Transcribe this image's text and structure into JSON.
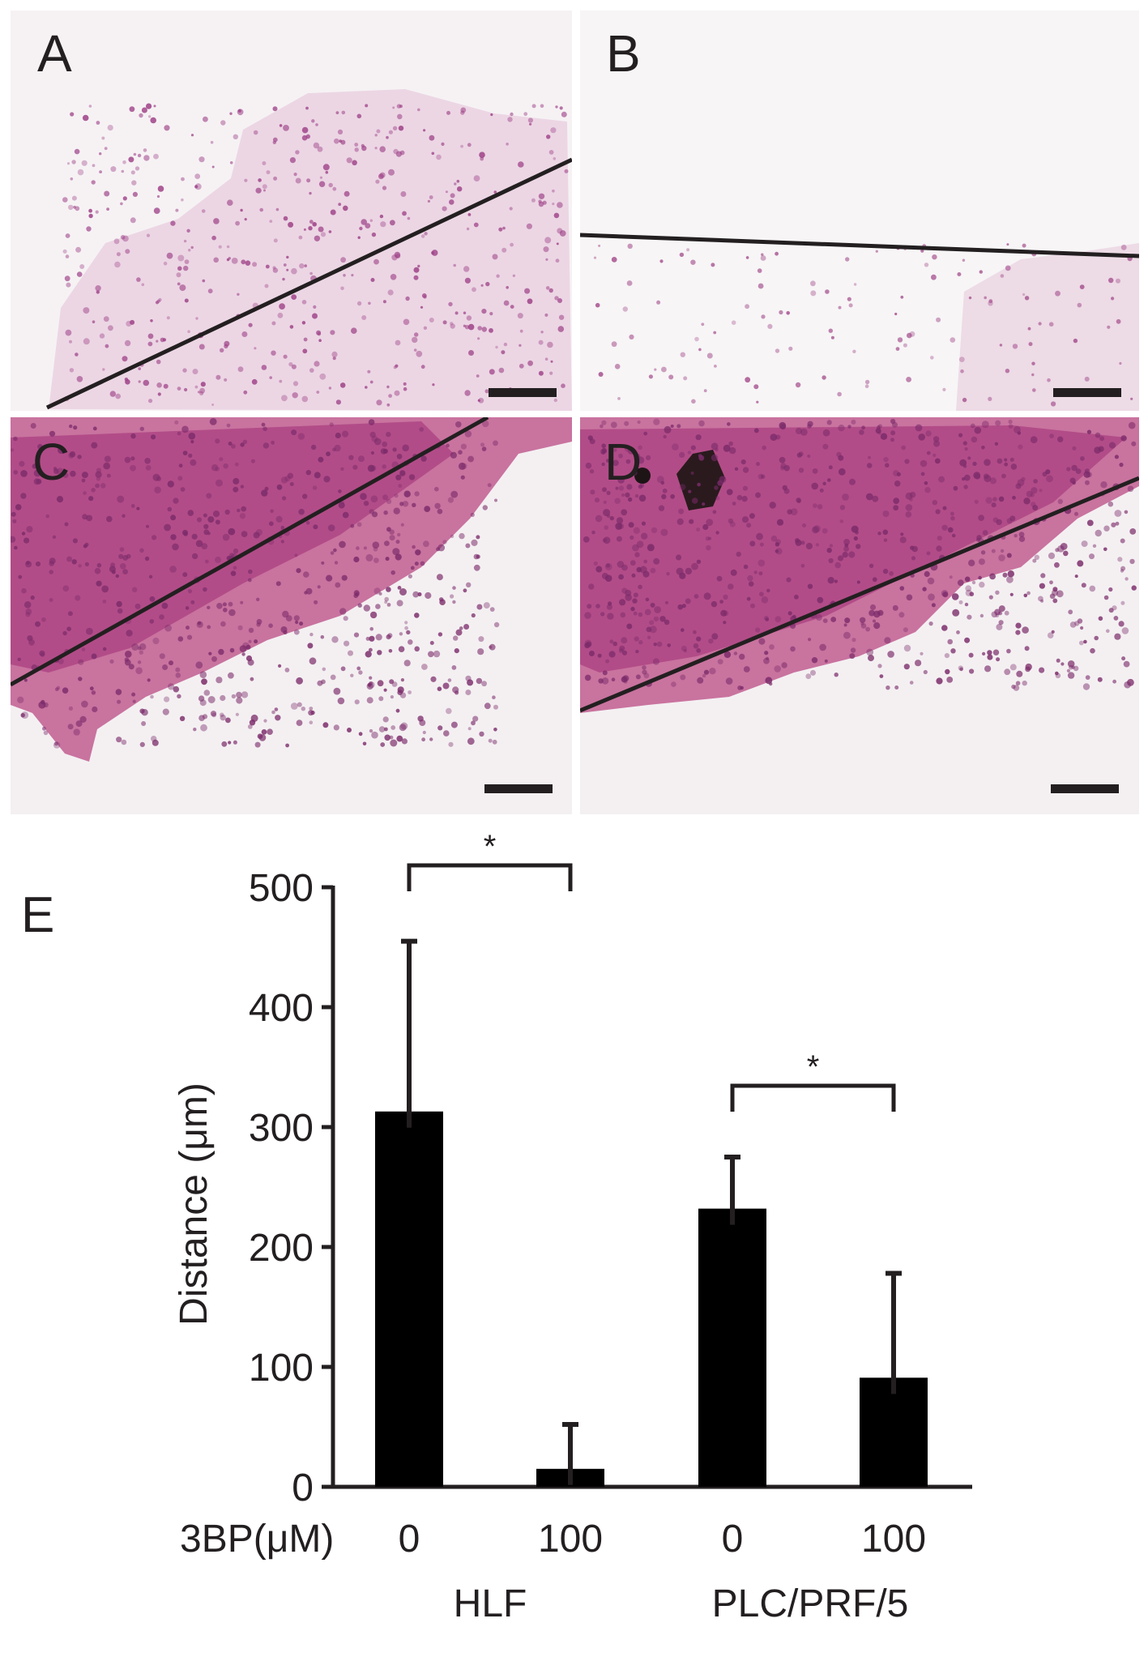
{
  "panels": [
    {
      "letter": "A",
      "description_bg": "#f4eff2",
      "cell_color": "#b0559c"
    },
    {
      "letter": "B",
      "description_bg": "#f5f2f4",
      "cell_color": "#b0559c"
    },
    {
      "letter": "C",
      "description_bg": "#f3eef1",
      "cell_color": "#c0307a"
    },
    {
      "letter": "D",
      "description_bg": "#f3eef1",
      "cell_color": "#c0307a"
    }
  ],
  "chart_panel_letter": "E",
  "chart_data": {
    "type": "bar",
    "ylabel": "Distance (μm)",
    "ylim": [
      0,
      500
    ],
    "yticks": [
      "0",
      "100",
      "200",
      "300",
      "400",
      "500"
    ],
    "x_label_prefix": "3BP(μM)",
    "categories": [
      "0",
      "100",
      "0",
      "100"
    ],
    "groups": [
      {
        "name": "HLF",
        "categories": [
          "0",
          "100"
        ]
      },
      {
        "name": "PLC/PRF/5",
        "categories": [
          "0",
          "100"
        ]
      }
    ],
    "values": [
      313,
      15,
      232,
      91
    ],
    "error_upper": [
      455,
      52,
      275,
      178
    ],
    "significance": [
      {
        "between": [
          0,
          1
        ],
        "label": "*"
      },
      {
        "between": [
          2,
          3
        ],
        "label": "*"
      }
    ],
    "bar_color": "#000000"
  }
}
